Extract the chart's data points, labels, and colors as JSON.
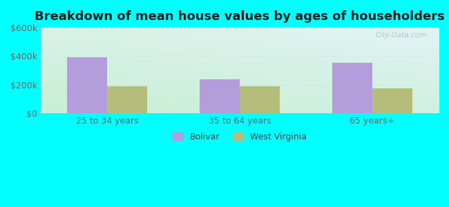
{
  "title": "Breakdown of mean house values by ages of householders",
  "categories": [
    "25 to 34 years",
    "35 to 64 years",
    "65 years+"
  ],
  "bolivar_values": [
    395000,
    240000,
    355000
  ],
  "wv_values": [
    190000,
    190000,
    175000
  ],
  "bolivar_color": "#b39ddb",
  "wv_color": "#b5bd7a",
  "ylim": [
    0,
    600000
  ],
  "yticks": [
    0,
    200000,
    400000,
    600000
  ],
  "ytick_labels": [
    "$0",
    "$200k",
    "$400k",
    "$600k"
  ],
  "bar_width": 0.3,
  "outer_bg": "#00ffff",
  "legend_bolivar": "Bolivar",
  "legend_wv": "West Virginia",
  "title_fontsize": 13,
  "watermark": "City-Data.com"
}
